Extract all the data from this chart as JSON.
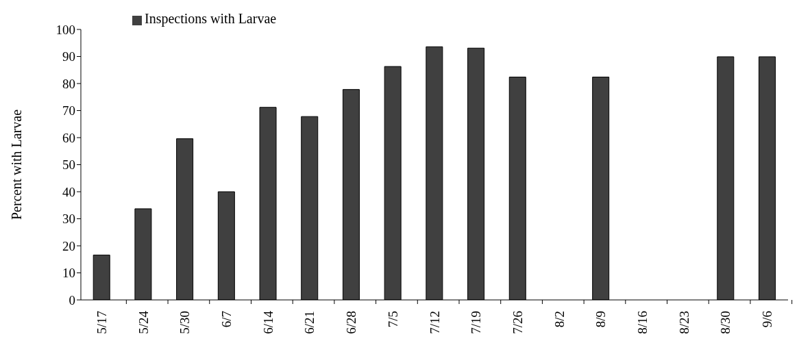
{
  "chart_data": {
    "type": "bar",
    "ylabel": "Percent with Larvae",
    "categories": [
      "5/17",
      "5/24",
      "5/30",
      "6/7",
      "6/14",
      "6/21",
      "6/28",
      "7/5",
      "7/12",
      "7/19",
      "7/26",
      "8/2",
      "8/9",
      "8/16",
      "8/23",
      "8/30",
      "9/6"
    ],
    "series": [
      {
        "name": "Inspections with Larvae",
        "color": "#404040",
        "values": [
          16.6,
          33.7,
          59.6,
          40,
          71.2,
          67.8,
          77.8,
          86.3,
          93.6,
          93.1,
          82.4,
          0,
          82.4,
          0,
          0,
          89.9,
          89.9
        ]
      }
    ],
    "ylim": [
      0,
      100
    ],
    "yticks": [
      0,
      10,
      20,
      30,
      40,
      50,
      60,
      70,
      80,
      90,
      100
    ],
    "legend": "top left"
  }
}
